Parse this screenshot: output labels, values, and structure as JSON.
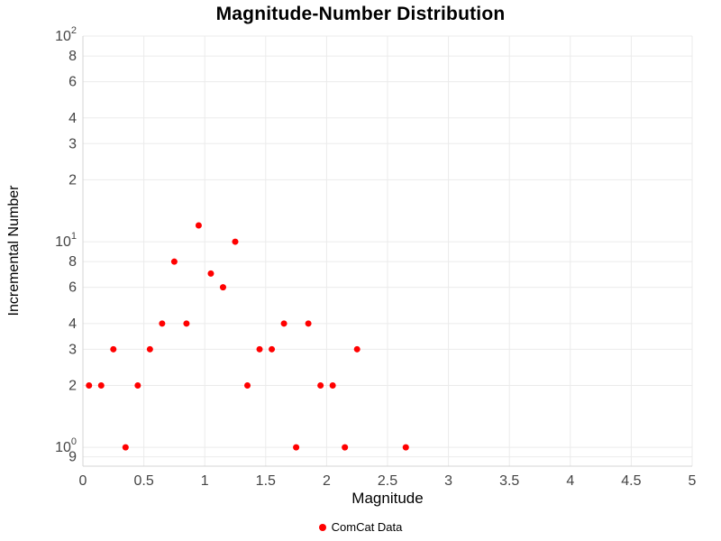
{
  "chart": {
    "title": "Magnitude-Number Distribution",
    "xlabel": "Magnitude",
    "ylabel": "Incremental Number"
  },
  "chart_data": {
    "type": "scatter",
    "title": "Magnitude-Number Distribution",
    "xlabel": "Magnitude",
    "ylabel": "Incremental Number",
    "x_scale": "linear",
    "y_scale": "log",
    "xlim": [
      0,
      5
    ],
    "ylim": [
      0.81,
      100
    ],
    "grid": true,
    "legend_position": "bottom-center",
    "marker_color": "#ff0000",
    "series": [
      {
        "name": "ComCat Data",
        "color": "#ff0000",
        "x": [
          0.05,
          0.15,
          0.25,
          0.35,
          0.45,
          0.55,
          0.65,
          0.75,
          0.85,
          0.95,
          1.05,
          1.15,
          1.25,
          1.35,
          1.45,
          1.55,
          1.65,
          1.75,
          1.85,
          1.95,
          2.05,
          2.15,
          2.25,
          2.65
        ],
        "y": [
          2,
          2,
          3,
          1,
          2,
          3,
          4,
          8,
          4,
          12,
          7,
          6,
          10,
          2,
          3,
          3,
          4,
          1,
          4,
          2,
          2,
          1,
          3,
          1
        ]
      }
    ],
    "x_ticks": [
      {
        "value": 0,
        "label": "0"
      },
      {
        "value": 0.5,
        "label": "0.5"
      },
      {
        "value": 1,
        "label": "1"
      },
      {
        "value": 1.5,
        "label": "1.5"
      },
      {
        "value": 2,
        "label": "2"
      },
      {
        "value": 2.5,
        "label": "2.5"
      },
      {
        "value": 3,
        "label": "3"
      },
      {
        "value": 3.5,
        "label": "3.5"
      },
      {
        "value": 4,
        "label": "4"
      },
      {
        "value": 4.5,
        "label": "4.5"
      },
      {
        "value": 5,
        "label": "5"
      }
    ],
    "y_ticks": [
      {
        "value": 100,
        "label": "10",
        "sup": "2"
      },
      {
        "value": 80,
        "label": "8"
      },
      {
        "value": 60,
        "label": "6"
      },
      {
        "value": 40,
        "label": "4"
      },
      {
        "value": 30,
        "label": "3"
      },
      {
        "value": 20,
        "label": "2"
      },
      {
        "value": 10,
        "label": "10",
        "sup": "1"
      },
      {
        "value": 8,
        "label": "8"
      },
      {
        "value": 6,
        "label": "6"
      },
      {
        "value": 4,
        "label": "4"
      },
      {
        "value": 3,
        "label": "3"
      },
      {
        "value": 2,
        "label": "2"
      },
      {
        "value": 1,
        "label": "10",
        "sup": "0"
      },
      {
        "value": 0.9,
        "label": "9"
      }
    ]
  }
}
